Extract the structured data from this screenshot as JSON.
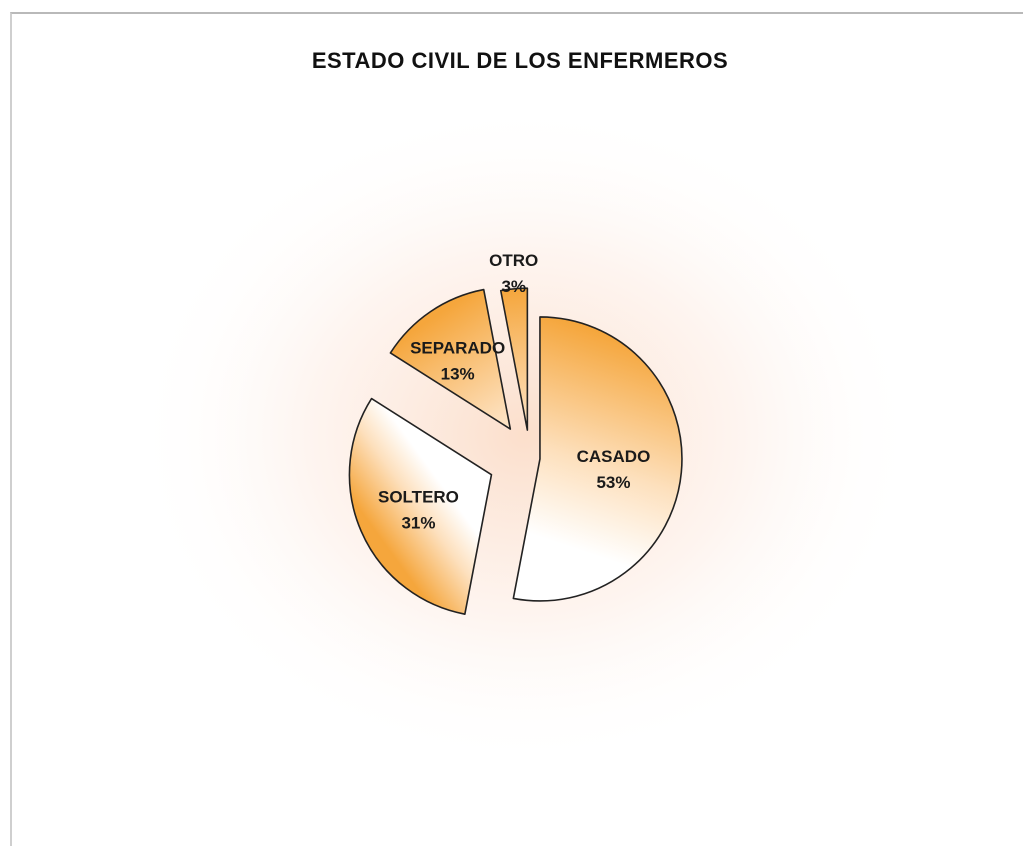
{
  "chart_data": {
    "type": "pie",
    "title": "ESTADO CIVIL DE LOS ENFERMEROS",
    "categories": [
      "CASADO",
      "SOLTERO",
      "SEPARADO",
      "OTRO"
    ],
    "values": [
      53,
      31,
      13,
      3
    ],
    "value_labels": [
      "53%",
      "31%",
      "13%",
      "3%"
    ],
    "exploded": true,
    "legend": "none",
    "colors": {
      "slice_fill_outer": "#f5a63c",
      "slice_fill_inner": "#ffffff",
      "slice_stroke": "#222222",
      "plot_glow": "#fbd9c2"
    }
  }
}
